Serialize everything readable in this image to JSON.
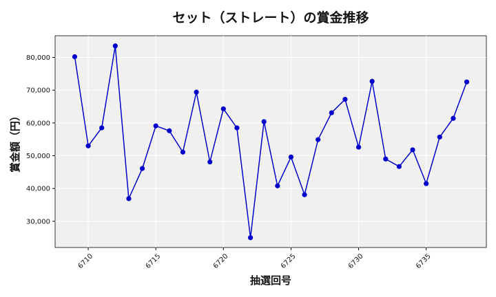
{
  "chart_data": {
    "type": "line",
    "title": "セット（ストレート）の賞金推移",
    "xlabel": "抽選回号",
    "ylabel": "賞金額（円）",
    "x": [
      6709,
      6710,
      6711,
      6712,
      6713,
      6714,
      6715,
      6716,
      6717,
      6718,
      6719,
      6720,
      6721,
      6722,
      6723,
      6724,
      6725,
      6726,
      6727,
      6728,
      6729,
      6730,
      6731,
      6732,
      6733,
      6734,
      6735,
      6736,
      6737,
      6738
    ],
    "series": [
      {
        "values": [
          80200,
          53000,
          58500,
          83500,
          36900,
          46100,
          59100,
          57600,
          51100,
          69400,
          48100,
          64300,
          58500,
          25000,
          60400,
          40800,
          49600,
          38100,
          54900,
          63100,
          67200,
          52600,
          72700,
          49000,
          46700,
          51800,
          41500,
          55700,
          61400,
          72500
        ]
      }
    ],
    "xticks": [
      "6710",
      "6715",
      "6720",
      "6725",
      "6730",
      "6735"
    ],
    "yticks": [
      "30,000",
      "40,000",
      "50,000",
      "60,000",
      "70,000",
      "80,000"
    ],
    "xlim": [
      6707.55,
      6739.45
    ],
    "ylim": [
      22000,
      86600
    ],
    "grid": true,
    "colors": {
      "line": "#0000cc",
      "marker": "#0000cc",
      "background": "#f0f0f0",
      "grid": "#ffffff"
    }
  }
}
